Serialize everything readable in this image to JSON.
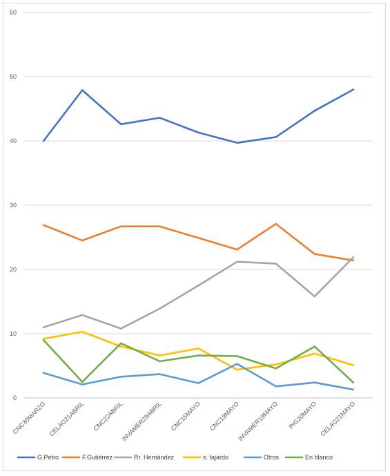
{
  "chart_data": {
    "type": "line",
    "title": "",
    "xlabel": "",
    "ylabel": "",
    "ylim": [
      0,
      60
    ],
    "yticks": [
      0,
      10,
      20,
      30,
      40,
      50,
      60
    ],
    "grid": true,
    "legend_position": "bottom",
    "categories": [
      "CNC30MARZO",
      "CELAG21ABRIL",
      "CNC22ABRIL",
      "INVAMER29ABRIL",
      "CNC15MAYO",
      "CNC19MAYO",
      "INVAMER19MAYO",
      "PIG20MAYO",
      "CELAG21MAYO"
    ],
    "series": [
      {
        "name": "G.Petro",
        "color": "#4472c4",
        "values": [
          40.0,
          47.9,
          42.6,
          43.6,
          41.3,
          39.7,
          40.6,
          44.7,
          48.0
        ]
      },
      {
        "name": "F.Gutiérrez",
        "color": "#ed7d31",
        "values": [
          26.9,
          24.5,
          26.7,
          26.7,
          24.9,
          23.1,
          27.1,
          22.4,
          21.4
        ]
      },
      {
        "name": "Rr. Hernández",
        "color": "#a5a5a5",
        "values": [
          11.0,
          12.9,
          10.8,
          13.9,
          17.5,
          21.2,
          20.9,
          15.8,
          21.9
        ]
      },
      {
        "name": "s. fajardo",
        "color": "#ffc000",
        "values": [
          9.2,
          10.3,
          8.0,
          6.6,
          7.7,
          4.4,
          5.2,
          6.9,
          5.1
        ]
      },
      {
        "name": "Otros",
        "color": "#5b9bd5",
        "values": [
          3.9,
          2.1,
          3.3,
          3.7,
          2.3,
          5.3,
          1.8,
          2.4,
          1.3
        ]
      },
      {
        "name": "En blanco",
        "color": "#70ad47",
        "values": [
          9.0,
          2.5,
          8.5,
          5.7,
          6.6,
          6.5,
          4.6,
          8.0,
          2.4
        ]
      }
    ]
  }
}
